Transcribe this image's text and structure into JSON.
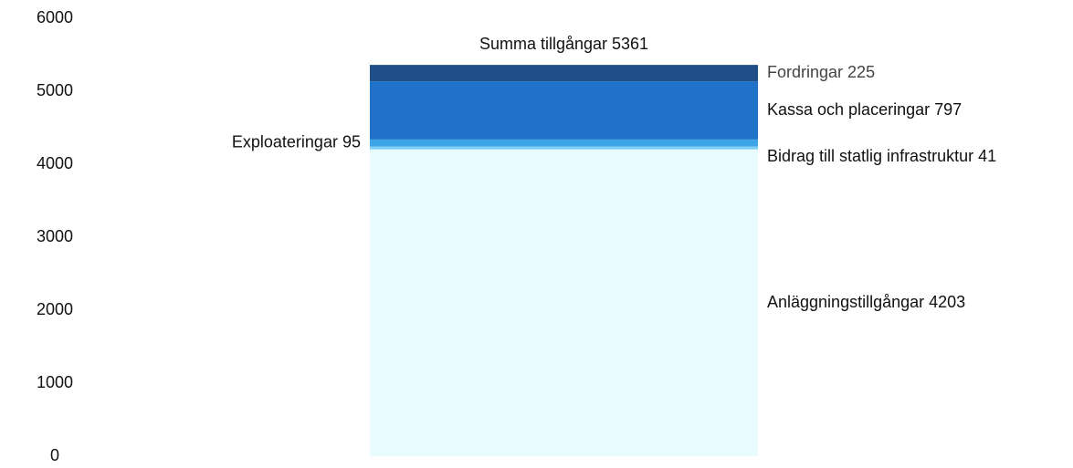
{
  "chart_data": {
    "type": "stacked_bar",
    "total": {
      "label": "Summa tillgångar",
      "value": 5361
    },
    "series": [
      {
        "name": "Anläggningstillgångar",
        "color": "#e8fcff",
        "values": [
          4203
        ]
      },
      {
        "name": "Bidrag till statlig infrastruktur",
        "color": "#7fd0f5",
        "values": [
          41
        ]
      },
      {
        "name": "Exploateringar",
        "color": "#3ea6e8",
        "values": [
          95
        ]
      },
      {
        "name": "Kassa och placeringar",
        "color": "#1f72c8",
        "values": [
          797
        ]
      },
      {
        "name": "Fordringar",
        "color": "#1f4f86",
        "values": [
          225
        ]
      }
    ],
    "ylim": [
      0,
      6000
    ],
    "yticks": [
      0,
      1000,
      2000,
      3000,
      4000,
      5000,
      6000
    ],
    "grid": false
  }
}
